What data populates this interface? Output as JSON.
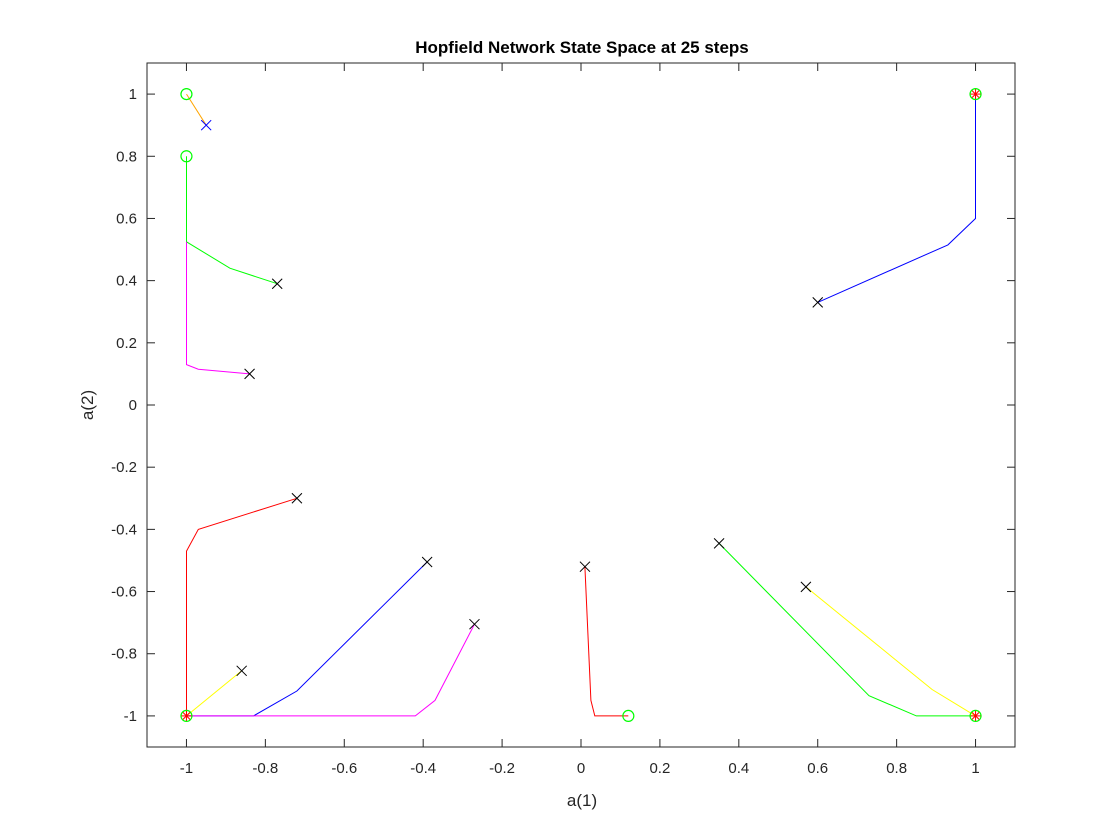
{
  "chart_data": {
    "type": "line",
    "title": "Hopfield Network State Space at 25 steps",
    "xlabel": "a(1)",
    "ylabel": "a(2)",
    "xlim": [
      -1.1,
      1.1
    ],
    "ylim": [
      -1.1,
      1.1
    ],
    "x_ticks": [
      -1,
      -0.8,
      -0.6,
      -0.4,
      -0.2,
      0,
      0.2,
      0.4,
      0.6,
      0.8,
      1
    ],
    "x_tick_labels": [
      "-1",
      "-0.8",
      "-0.6",
      "-0.4",
      "-0.2",
      "0",
      "0.2",
      "0.4",
      "0.6",
      "0.8",
      "1"
    ],
    "y_ticks": [
      -1,
      -0.8,
      -0.6,
      -0.4,
      -0.2,
      0,
      0.2,
      0.4,
      0.6,
      0.8,
      1
    ],
    "y_tick_labels": [
      "-1",
      "-0.8",
      "-0.6",
      "-0.4",
      "-0.2",
      "0",
      "0.2",
      "0.4",
      "0.6",
      "0.8",
      "1"
    ],
    "grid": false,
    "colors": {
      "axes": "#262626",
      "start_marker": "#000000",
      "end_marker": "#00ff00",
      "fixed_point": "#ff0000"
    },
    "series": [
      {
        "color": "#ffa500",
        "start_marker_color": "#0000ff",
        "points": [
          [
            -0.95,
            0.9
          ],
          [
            -1,
            1
          ]
        ]
      },
      {
        "color": "#00ff00",
        "start_marker_color": "#000000",
        "points": [
          [
            -0.77,
            0.39
          ],
          [
            -0.89,
            0.44
          ],
          [
            -1,
            0.525
          ],
          [
            -1,
            0.8
          ]
        ]
      },
      {
        "color": "#ff00ff",
        "start_marker_color": "#000000",
        "points": [
          [
            -0.84,
            0.1
          ],
          [
            -0.97,
            0.115
          ],
          [
            -1,
            0.13
          ],
          [
            -1,
            0.525
          ]
        ]
      },
      {
        "color": "#0000ff",
        "start_marker_color": "#000000",
        "points": [
          [
            0.6,
            0.33
          ],
          [
            0.93,
            0.515
          ],
          [
            1,
            0.6
          ],
          [
            1,
            1
          ]
        ]
      },
      {
        "color": "#ff0000",
        "start_marker_color": "#000000",
        "points": [
          [
            -0.72,
            -0.3
          ],
          [
            -0.97,
            -0.4
          ],
          [
            -1,
            -0.47
          ],
          [
            -1,
            -1
          ]
        ]
      },
      {
        "color": "#ffff00",
        "start_marker_color": "#000000",
        "points": [
          [
            -0.86,
            -0.855
          ],
          [
            -1,
            -1
          ]
        ]
      },
      {
        "color": "#0000ff",
        "start_marker_color": "#000000",
        "points": [
          [
            -0.39,
            -0.505
          ],
          [
            -0.72,
            -0.92
          ],
          [
            -0.83,
            -1
          ],
          [
            -1,
            -1
          ]
        ]
      },
      {
        "color": "#ff00ff",
        "start_marker_color": "#000000",
        "points": [
          [
            -0.27,
            -0.705
          ],
          [
            -0.37,
            -0.95
          ],
          [
            -0.42,
            -1
          ],
          [
            -1,
            -1
          ]
        ]
      },
      {
        "color": "#ff0000",
        "start_marker_color": "#000000",
        "points": [
          [
            0.01,
            -0.52
          ],
          [
            0.025,
            -0.95
          ],
          [
            0.035,
            -1
          ],
          [
            0.12,
            -1
          ]
        ]
      },
      {
        "color": "#00ff00",
        "start_marker_color": "#000000",
        "points": [
          [
            0.35,
            -0.445
          ],
          [
            0.73,
            -0.935
          ],
          [
            0.85,
            -1
          ],
          [
            1,
            -1
          ]
        ]
      },
      {
        "color": "#ffff00",
        "start_marker_color": "#000000",
        "points": [
          [
            0.57,
            -0.585
          ],
          [
            0.89,
            -0.915
          ],
          [
            1,
            -1
          ]
        ]
      }
    ],
    "end_markers": [
      [
        -1,
        1
      ],
      [
        -1,
        0.8
      ],
      [
        1,
        1
      ],
      [
        -1,
        -1
      ],
      [
        1,
        -1
      ],
      [
        0.12,
        -1
      ]
    ],
    "fixed_points": [
      [
        1,
        1
      ],
      [
        -1,
        -1
      ],
      [
        1,
        -1
      ]
    ]
  }
}
